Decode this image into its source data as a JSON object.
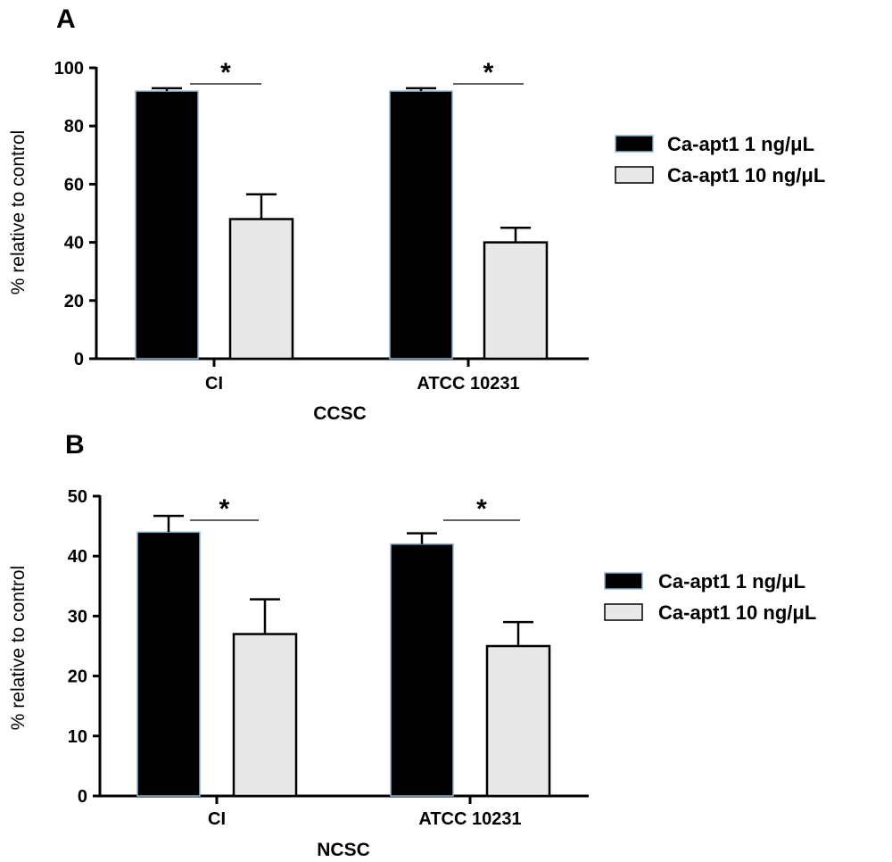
{
  "chart_data": [
    {
      "type": "bar",
      "panel_label": "A",
      "categories": [
        "CI",
        "ATCC 10231"
      ],
      "series": [
        {
          "name": "Ca-apt1 1 ng/μL",
          "values": [
            92,
            92
          ],
          "errors": [
            1,
            1
          ],
          "color": "#000000"
        },
        {
          "name": "Ca-apt1 10 ng/μL",
          "values": [
            48,
            40
          ],
          "errors": [
            8.5,
            5
          ],
          "color": "#e8e8e8"
        }
      ],
      "significance": [
        "*",
        "*"
      ],
      "xlabel": "CCSC",
      "ylabel": "% relative to control",
      "ylim": [
        0,
        100
      ],
      "yticks": [
        0,
        20,
        40,
        60,
        80,
        100
      ],
      "legend_position": "right"
    },
    {
      "type": "bar",
      "panel_label": "B",
      "categories": [
        "CI",
        "ATCC 10231"
      ],
      "series": [
        {
          "name": "Ca-apt1 1 ng/μL",
          "values": [
            44,
            42
          ],
          "errors": [
            2.7,
            1.8
          ],
          "color": "#000000"
        },
        {
          "name": "Ca-apt1 10 ng/μL",
          "values": [
            27,
            25
          ],
          "errors": [
            5.8,
            4
          ],
          "color": "#e8e8e8"
        }
      ],
      "significance": [
        "*",
        "*"
      ],
      "xlabel": "NCSC",
      "ylabel": "% relative to control",
      "ylim": [
        0,
        50
      ],
      "yticks": [
        0,
        10,
        20,
        30,
        40,
        50
      ],
      "legend_position": "right"
    }
  ]
}
